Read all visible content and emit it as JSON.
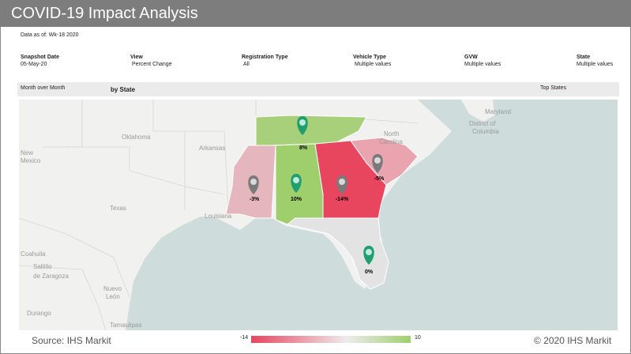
{
  "title": "COVID-19 Impact Analysis",
  "data_as_of": "Data as of: Wk-18 2020",
  "filters": [
    {
      "label": "Snapshot Date",
      "value": "05-May-20"
    },
    {
      "label": "View",
      "value": "Percent Change"
    },
    {
      "label": "Registration Type",
      "value": "All"
    },
    {
      "label": "Vehicle Type",
      "value": "Multiple values"
    },
    {
      "label": "GVW",
      "value": "Multiple values"
    },
    {
      "label": "State",
      "value": "Multiple values"
    }
  ],
  "strip": {
    "left": "Month over Month",
    "center": "by State",
    "right": "Top States"
  },
  "map_labels": {
    "oklahoma": "Oklahoma",
    "arkansas": "Arkansas",
    "new_mexico": "New\nMexico",
    "texas": "Texas",
    "louisiana": "Louisiana",
    "north_carolina": "North\nCarolina",
    "maryland": "Maryland",
    "dc": "District of\nColumbia",
    "coahuila": "Coahuila",
    "saltillo": "Saltillo",
    "de_zaragoza": "de Zaragoza",
    "nuevo_leon": "Nuevo\nLeón",
    "durango": "Durango",
    "tamaulipas": "Tamaulipas"
  },
  "states": [
    {
      "name": "Tennessee",
      "value_label": "8%",
      "value": 8,
      "marker": "green"
    },
    {
      "name": "Mississippi",
      "value_label": "-3%",
      "value": -3,
      "marker": "gray"
    },
    {
      "name": "Alabama",
      "value_label": "10%",
      "value": 10,
      "marker": "green"
    },
    {
      "name": "Georgia",
      "value_label": "-14%",
      "value": -14,
      "marker": "gray"
    },
    {
      "name": "South Carolina",
      "value_label": "-5%",
      "value": -5,
      "marker": "gray"
    },
    {
      "name": "Florida",
      "value_label": "0%",
      "value": 0,
      "marker": "green"
    }
  ],
  "legend": {
    "min": "-14",
    "max": "10",
    "min_color": "#e8455f",
    "max_color": "#9fcf6d"
  },
  "footer": {
    "source": "Source: IHS Markit",
    "copyright": "© 2020 IHS Markit"
  },
  "colors": {
    "title_bar": "#7d7d7d",
    "water": "#cfdcdc",
    "land": "#f1f1ef",
    "positive": "#9fcf6d",
    "negative": "#e8455f",
    "marker_green": "#1f9e6e",
    "marker_gray": "#7a7a7a"
  }
}
